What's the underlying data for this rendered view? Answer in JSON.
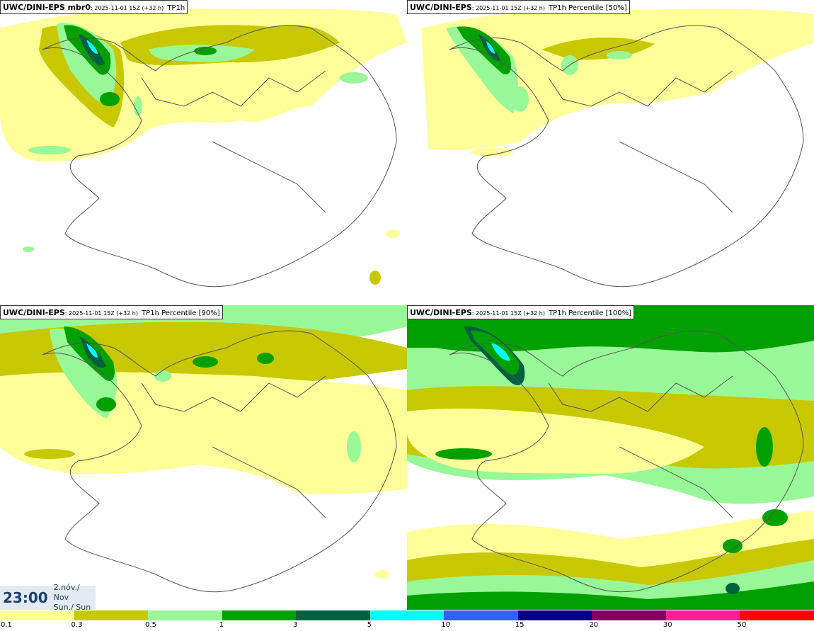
{
  "panels": [
    {
      "model": "UWC/DINI-EPS mbr0",
      "run": "2025-11-01 15Z (+32 h)",
      "field": "TP1h"
    },
    {
      "model": "UWC/DINI-EPS",
      "run": "2025-11-01 15Z (+32 h)",
      "field": "TP1h Percentile [50%]"
    },
    {
      "model": "UWC/DINI-EPS",
      "run": "2025-11-01 15Z (+32 h)",
      "field": "TP1h Percentile [90%]"
    },
    {
      "model": "UWC/DINI-EPS",
      "run": "2025-11-01 15Z (+32 h)",
      "field": "TP1h Percentile [100%]"
    }
  ],
  "valid_time": {
    "time": "23:00",
    "date": "2.nóv./ Nov",
    "day": "Sun./ Sun"
  },
  "legend": {
    "labels": [
      "0.1",
      "0.3",
      "0.5",
      "1",
      "3",
      "5",
      "10",
      "15",
      "20",
      "30",
      "50"
    ],
    "colors": [
      "#ffff99",
      "#c8c800",
      "#98f898",
      "#00a000",
      "#006040",
      "#00ffff",
      "#3060ff",
      "#000080",
      "#800060",
      "#ff2090",
      "#ff0000"
    ]
  },
  "map_colors": {
    "c1": "#ffff99",
    "c2": "#c8c800",
    "c3": "#98f898",
    "c4": "#00a000",
    "c5": "#006040",
    "c6": "#00ffff",
    "coast": "#555555"
  }
}
